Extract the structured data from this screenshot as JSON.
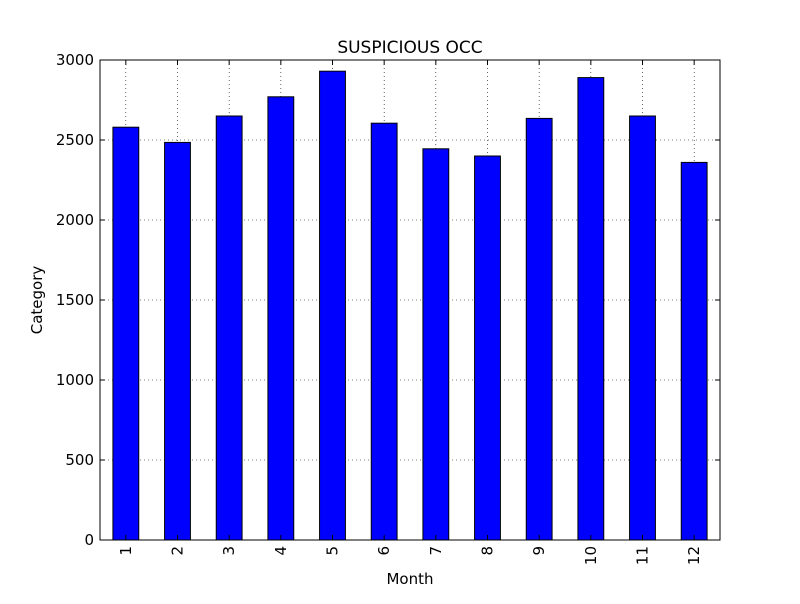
{
  "chart_data": {
    "type": "bar",
    "title": "SUSPICIOUS OCC",
    "xlabel": "Month",
    "ylabel": "Category",
    "categories": [
      "1",
      "2",
      "3",
      "4",
      "5",
      "6",
      "7",
      "8",
      "9",
      "10",
      "11",
      "12"
    ],
    "values": [
      2580,
      2485,
      2650,
      2770,
      2930,
      2605,
      2445,
      2400,
      2635,
      2890,
      2650,
      2360
    ],
    "ylim": [
      0,
      3000
    ],
    "yticks": [
      0,
      500,
      1000,
      1500,
      2000,
      2500,
      3000
    ],
    "grid": true,
    "bar_color": "#0000ff",
    "edge_color": "#000000",
    "xtick_rotation": "vertical"
  }
}
